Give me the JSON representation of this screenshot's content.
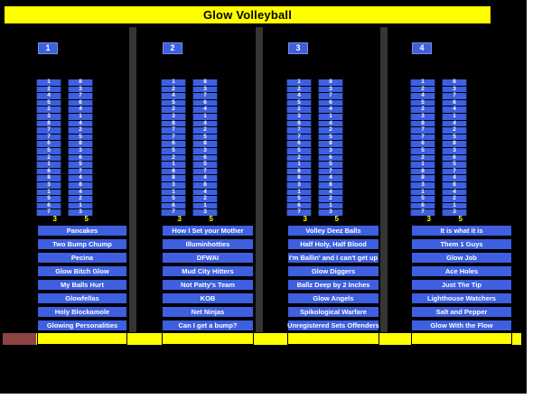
{
  "page": {
    "title": "Glow Volleyball"
  },
  "colors": {
    "background": "#000000",
    "cell_blue": "#3D5FE0",
    "highlight_yellow": "#FFFF00",
    "divider_gray": "#353535",
    "footer_red": "#8E4343"
  },
  "columns": [
    {
      "header": "1",
      "left_strip": [
        1,
        2,
        4,
        5,
        2,
        3,
        8,
        7,
        7,
        6,
        5,
        2,
        1,
        8,
        8,
        3,
        1,
        5,
        6,
        7
      ],
      "right_strip": [
        8,
        3,
        7,
        6,
        4,
        1,
        4,
        2,
        5,
        8,
        3,
        6,
        5,
        7,
        4,
        8,
        4,
        2,
        1,
        3
      ],
      "left_court_label": "3",
      "right_court_label": "5",
      "teams": [
        "Pancakes",
        "Two Bump Chump",
        "Pecina",
        "Glow Bitch Glow",
        "My Balls Hurt",
        "Glowfellas",
        "Holy Blockamole",
        "Glowing Personalities"
      ]
    },
    {
      "header": "2",
      "left_strip": [
        1,
        2,
        4,
        5,
        2,
        3,
        8,
        7,
        7,
        6,
        5,
        2,
        1,
        8,
        8,
        3,
        1,
        5,
        6,
        7
      ],
      "right_strip": [
        8,
        3,
        7,
        6,
        4,
        1,
        4,
        2,
        5,
        8,
        3,
        6,
        5,
        7,
        4,
        8,
        4,
        2,
        1,
        3
      ],
      "left_court_label": "3",
      "right_court_label": "5",
      "teams": [
        "How I Set your Mother",
        "Illuminhotties",
        "DFWAI",
        "Mud City Hitters",
        "Not Patty's Team",
        "KOB",
        "Net Ninjas",
        "Can I get a bump?"
      ]
    },
    {
      "header": "3",
      "left_strip": [
        1,
        2,
        4,
        5,
        2,
        3,
        8,
        7,
        7,
        6,
        5,
        2,
        1,
        8,
        8,
        3,
        1,
        5,
        6,
        7
      ],
      "right_strip": [
        8,
        3,
        7,
        6,
        4,
        1,
        4,
        2,
        5,
        8,
        3,
        6,
        5,
        7,
        4,
        8,
        4,
        2,
        1,
        3
      ],
      "left_court_label": "3",
      "right_court_label": "5",
      "teams": [
        "Volley Deez Balls",
        "Half Holy, Half Blood",
        "I'm Ballin' and I can't get up",
        "Glow Diggers",
        "Ballz Deep by 2 Inches",
        "Glow Angels",
        "Spikological Warfare",
        "Unregistered Sets Offenders"
      ]
    },
    {
      "header": "4",
      "left_strip": [
        1,
        2,
        4,
        5,
        2,
        3,
        8,
        7,
        7,
        6,
        5,
        2,
        1,
        8,
        8,
        3,
        1,
        5,
        6,
        7
      ],
      "right_strip": [
        8,
        3,
        7,
        6,
        4,
        1,
        4,
        2,
        5,
        8,
        3,
        6,
        5,
        7,
        4,
        8,
        4,
        2,
        1,
        3
      ],
      "left_court_label": "3",
      "right_court_label": "5",
      "teams": [
        "It is what it is",
        "Them 1 Guys",
        "Glow Job",
        "Ace Holes",
        "Just The Tip",
        "Lighthouse Watchers",
        "Salt and Pepper",
        "Glow With the Flow"
      ]
    }
  ]
}
